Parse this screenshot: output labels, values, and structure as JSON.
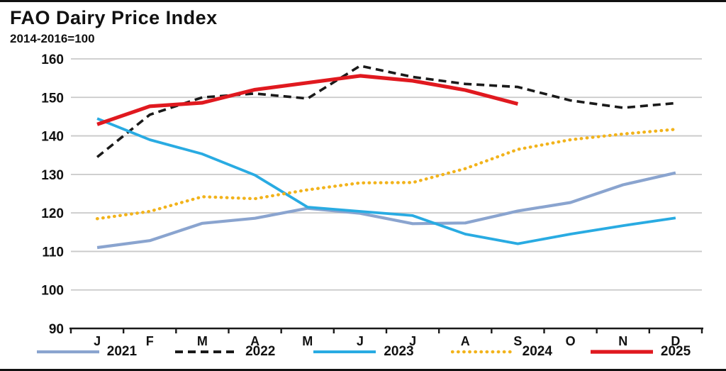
{
  "page": {
    "title": "FAO Dairy Price Index",
    "subtitle": "2014-2016=100"
  },
  "chart_data": {
    "type": "line",
    "title": "FAO Dairy Price Index",
    "subtitle": "2014-2016=100",
    "x_tick_labels": [
      "J",
      "F",
      "M",
      "A",
      "M",
      "J",
      "J",
      "A",
      "S",
      "O",
      "N",
      "D"
    ],
    "y_ticks": [
      90,
      100,
      110,
      120,
      130,
      140,
      150,
      160
    ],
    "ylim": [
      90,
      160
    ],
    "grid": "horizontal-only",
    "gridline_color": "#c9c9c9",
    "axis_color": "#1a1a1a",
    "legend_position": "bottom",
    "series": [
      {
        "name": "2021",
        "color": "#8aa4cf",
        "style": "solid",
        "width": 4.2,
        "values": [
          111,
          112.8,
          117.3,
          118.6,
          121.2,
          119.9,
          117.2,
          117.4,
          120.5,
          122.7,
          127.3,
          130.4
        ]
      },
      {
        "name": "2022",
        "color": "#1a1a1a",
        "style": "dashed",
        "width": 3.6,
        "values": [
          134.5,
          145.5,
          150,
          151,
          149.7,
          158.2,
          155.3,
          153.5,
          152.7,
          149.2,
          147.3,
          148.5
        ]
      },
      {
        "name": "2023",
        "color": "#29abe2",
        "style": "solid",
        "width": 3.8,
        "values": [
          144.5,
          139,
          135.3,
          129.8,
          121.5,
          120.4,
          119.3,
          114.5,
          112,
          114.5,
          116.7,
          118.7
        ]
      },
      {
        "name": "2024",
        "color": "#f2b31b",
        "style": "dotted",
        "width": 4.4,
        "values": [
          118.5,
          120.4,
          124.2,
          123.7,
          126,
          127.8,
          127.9,
          131.5,
          136.5,
          139,
          140.5,
          141.7
        ]
      },
      {
        "name": "2025",
        "color": "#e0191f",
        "style": "solid",
        "width": 5.2,
        "values": [
          143,
          147.7,
          148.6,
          152,
          153.8,
          155.6,
          154.3,
          151.9,
          148.3
        ]
      }
    ]
  }
}
